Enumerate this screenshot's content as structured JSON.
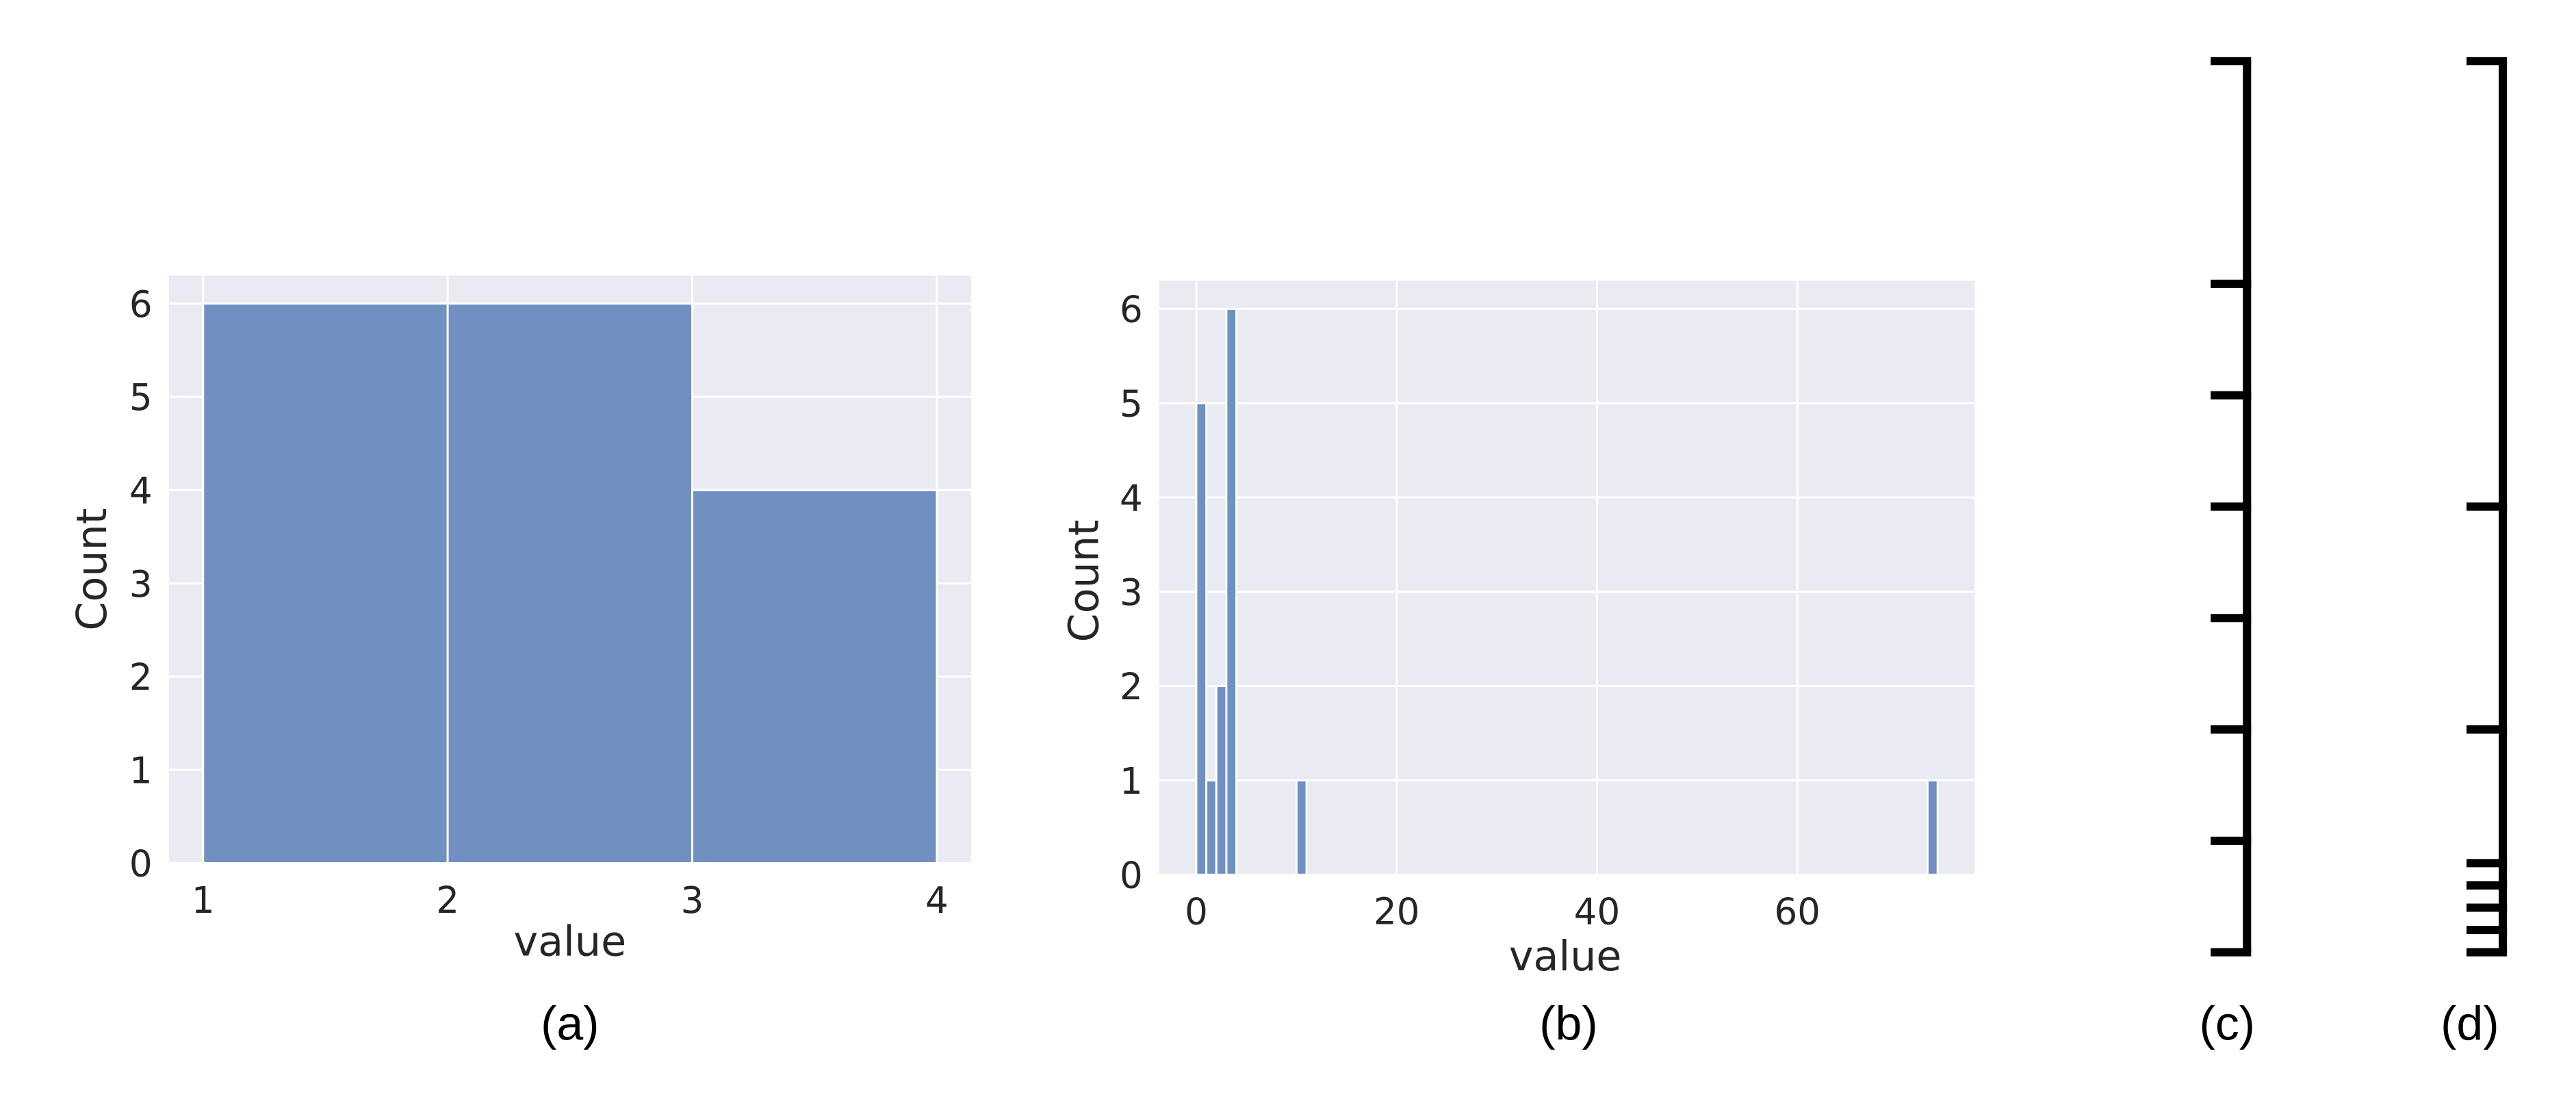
{
  "chart_data": [
    {
      "panel": "(a)",
      "type": "bar",
      "bin_edges": [
        1,
        2,
        3,
        4
      ],
      "values": [
        6,
        6,
        4
      ],
      "xlabel": "value",
      "ylabel": "Count",
      "xlim": [
        0.86,
        4.14
      ],
      "ylim": [
        0,
        6.3
      ],
      "xticks": [
        1,
        2,
        3,
        4
      ],
      "yticks": [
        0,
        1,
        2,
        3,
        4,
        5,
        6
      ],
      "grid": true,
      "bar_color": "#7190c2",
      "background_color": "#eaeaf2"
    },
    {
      "panel": "(b)",
      "type": "bar",
      "bins": [
        {
          "start": 0.0,
          "end": 1.0,
          "count": 5
        },
        {
          "start": 1.0,
          "end": 2.0,
          "count": 1
        },
        {
          "start": 2.0,
          "end": 3.0,
          "count": 2
        },
        {
          "start": 3.0,
          "end": 4.0,
          "count": 6
        },
        {
          "start": 10.0,
          "end": 11.0,
          "count": 1
        },
        {
          "start": 73.0,
          "end": 74.0,
          "count": 1
        }
      ],
      "xlabel": "value",
      "ylabel": "Count",
      "xlim": [
        -3.7,
        77.7
      ],
      "ylim": [
        0,
        6.3
      ],
      "xticks": [
        0,
        20,
        40,
        60
      ],
      "yticks": [
        0,
        1,
        2,
        3,
        4,
        5,
        6
      ],
      "grid": true,
      "bar_color": "#7190c2",
      "background_color": "#eaeaf2"
    },
    {
      "panel": "(c)",
      "type": "scale",
      "orientation": "vertical",
      "ticks": [
        0,
        1,
        2,
        3,
        4,
        5,
        6,
        8
      ],
      "domain": [
        0,
        8
      ],
      "color": "#000000"
    },
    {
      "panel": "(d)",
      "type": "scale",
      "orientation": "vertical",
      "ticks": [
        0,
        1,
        2,
        3,
        4,
        10,
        20,
        40
      ],
      "domain": [
        0,
        40
      ],
      "color": "#000000"
    }
  ]
}
